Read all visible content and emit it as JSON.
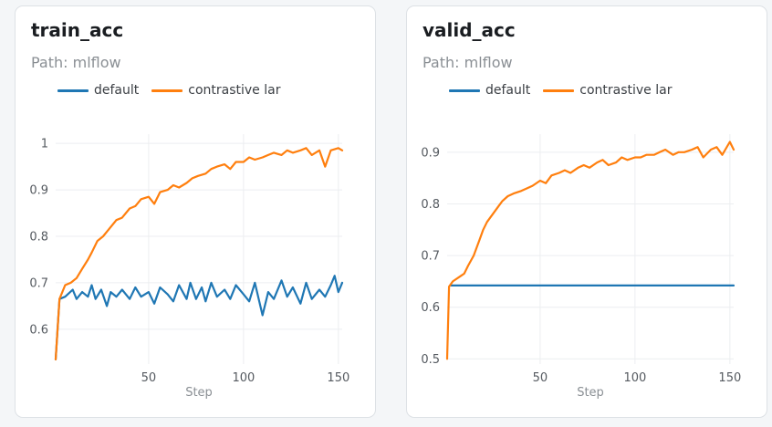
{
  "colors": {
    "default": "#1f77b4",
    "contrastive": "#ff7f0e",
    "grid": "#eceef0"
  },
  "chart_data": [
    {
      "type": "line",
      "title": "train_acc",
      "path": "Path: mlflow",
      "xlabel": "Step",
      "ylabel": "",
      "xlim": [
        1,
        152
      ],
      "ylim": [
        0.525,
        1.02
      ],
      "xticks": [
        50,
        100,
        150
      ],
      "yticks": [
        0.6,
        0.7,
        0.8,
        0.9,
        1
      ],
      "ytick_labels": [
        "0.6",
        "0.7",
        "0.8",
        "0.9",
        "1"
      ],
      "legend": "top",
      "series": [
        {
          "name": "default",
          "color": "#1f77b4",
          "x": [
            1,
            3,
            6,
            10,
            12,
            15,
            18,
            20,
            22,
            25,
            28,
            30,
            33,
            36,
            40,
            43,
            46,
            50,
            53,
            56,
            60,
            63,
            66,
            70,
            72,
            75,
            78,
            80,
            83,
            86,
            90,
            93,
            96,
            100,
            103,
            106,
            110,
            113,
            116,
            120,
            123,
            126,
            130,
            133,
            136,
            140,
            143,
            146,
            148,
            150,
            152
          ],
          "y": [
            0.535,
            0.665,
            0.67,
            0.685,
            0.665,
            0.68,
            0.67,
            0.695,
            0.665,
            0.685,
            0.65,
            0.68,
            0.67,
            0.685,
            0.665,
            0.69,
            0.67,
            0.68,
            0.655,
            0.69,
            0.675,
            0.66,
            0.695,
            0.665,
            0.7,
            0.665,
            0.69,
            0.66,
            0.7,
            0.67,
            0.685,
            0.665,
            0.695,
            0.675,
            0.66,
            0.7,
            0.63,
            0.68,
            0.665,
            0.705,
            0.67,
            0.69,
            0.655,
            0.7,
            0.665,
            0.685,
            0.67,
            0.695,
            0.715,
            0.68,
            0.7
          ]
        },
        {
          "name": "contrastive lar",
          "color": "#ff7f0e",
          "x": [
            1,
            3,
            6,
            9,
            12,
            15,
            18,
            20,
            23,
            26,
            30,
            33,
            36,
            40,
            43,
            46,
            50,
            53,
            56,
            60,
            63,
            66,
            70,
            73,
            76,
            80,
            83,
            86,
            90,
            93,
            96,
            100,
            103,
            106,
            110,
            113,
            116,
            120,
            123,
            126,
            130,
            133,
            136,
            140,
            143,
            146,
            150,
            152
          ],
          "y": [
            0.535,
            0.665,
            0.695,
            0.7,
            0.71,
            0.73,
            0.75,
            0.765,
            0.79,
            0.8,
            0.82,
            0.835,
            0.84,
            0.86,
            0.865,
            0.88,
            0.885,
            0.87,
            0.895,
            0.9,
            0.91,
            0.905,
            0.915,
            0.925,
            0.93,
            0.935,
            0.945,
            0.95,
            0.955,
            0.945,
            0.96,
            0.96,
            0.97,
            0.965,
            0.97,
            0.975,
            0.98,
            0.975,
            0.985,
            0.98,
            0.985,
            0.99,
            0.975,
            0.985,
            0.95,
            0.985,
            0.99,
            0.985
          ]
        }
      ]
    },
    {
      "type": "line",
      "title": "valid_acc",
      "path": "Path: mlflow",
      "xlabel": "Step",
      "ylabel": "",
      "xlim": [
        1,
        152
      ],
      "ylim": [
        0.49,
        0.935
      ],
      "xticks": [
        50,
        100,
        150
      ],
      "yticks": [
        0.5,
        0.6,
        0.7,
        0.8,
        0.9
      ],
      "ytick_labels": [
        "0.5",
        "0.6",
        "0.7",
        "0.8",
        "0.9"
      ],
      "legend": "top",
      "series": [
        {
          "name": "default",
          "color": "#1f77b4",
          "x": [
            3,
            152
          ],
          "y": [
            0.642,
            0.642
          ]
        },
        {
          "name": "contrastive lar",
          "color": "#ff7f0e",
          "x": [
            1,
            2,
            4,
            8,
            10,
            12,
            15,
            18,
            20,
            22,
            25,
            28,
            30,
            33,
            36,
            40,
            43,
            46,
            50,
            53,
            56,
            60,
            63,
            66,
            70,
            73,
            76,
            80,
            83,
            86,
            90,
            93,
            96,
            100,
            103,
            106,
            110,
            113,
            116,
            120,
            123,
            126,
            130,
            133,
            136,
            140,
            143,
            146,
            150,
            152
          ],
          "y": [
            0.5,
            0.64,
            0.65,
            0.66,
            0.665,
            0.68,
            0.7,
            0.73,
            0.75,
            0.765,
            0.78,
            0.795,
            0.805,
            0.815,
            0.82,
            0.825,
            0.83,
            0.835,
            0.845,
            0.84,
            0.855,
            0.86,
            0.865,
            0.86,
            0.87,
            0.875,
            0.87,
            0.88,
            0.885,
            0.875,
            0.88,
            0.89,
            0.885,
            0.89,
            0.89,
            0.895,
            0.895,
            0.9,
            0.905,
            0.895,
            0.9,
            0.9,
            0.905,
            0.91,
            0.89,
            0.905,
            0.91,
            0.895,
            0.92,
            0.905
          ]
        }
      ]
    }
  ]
}
